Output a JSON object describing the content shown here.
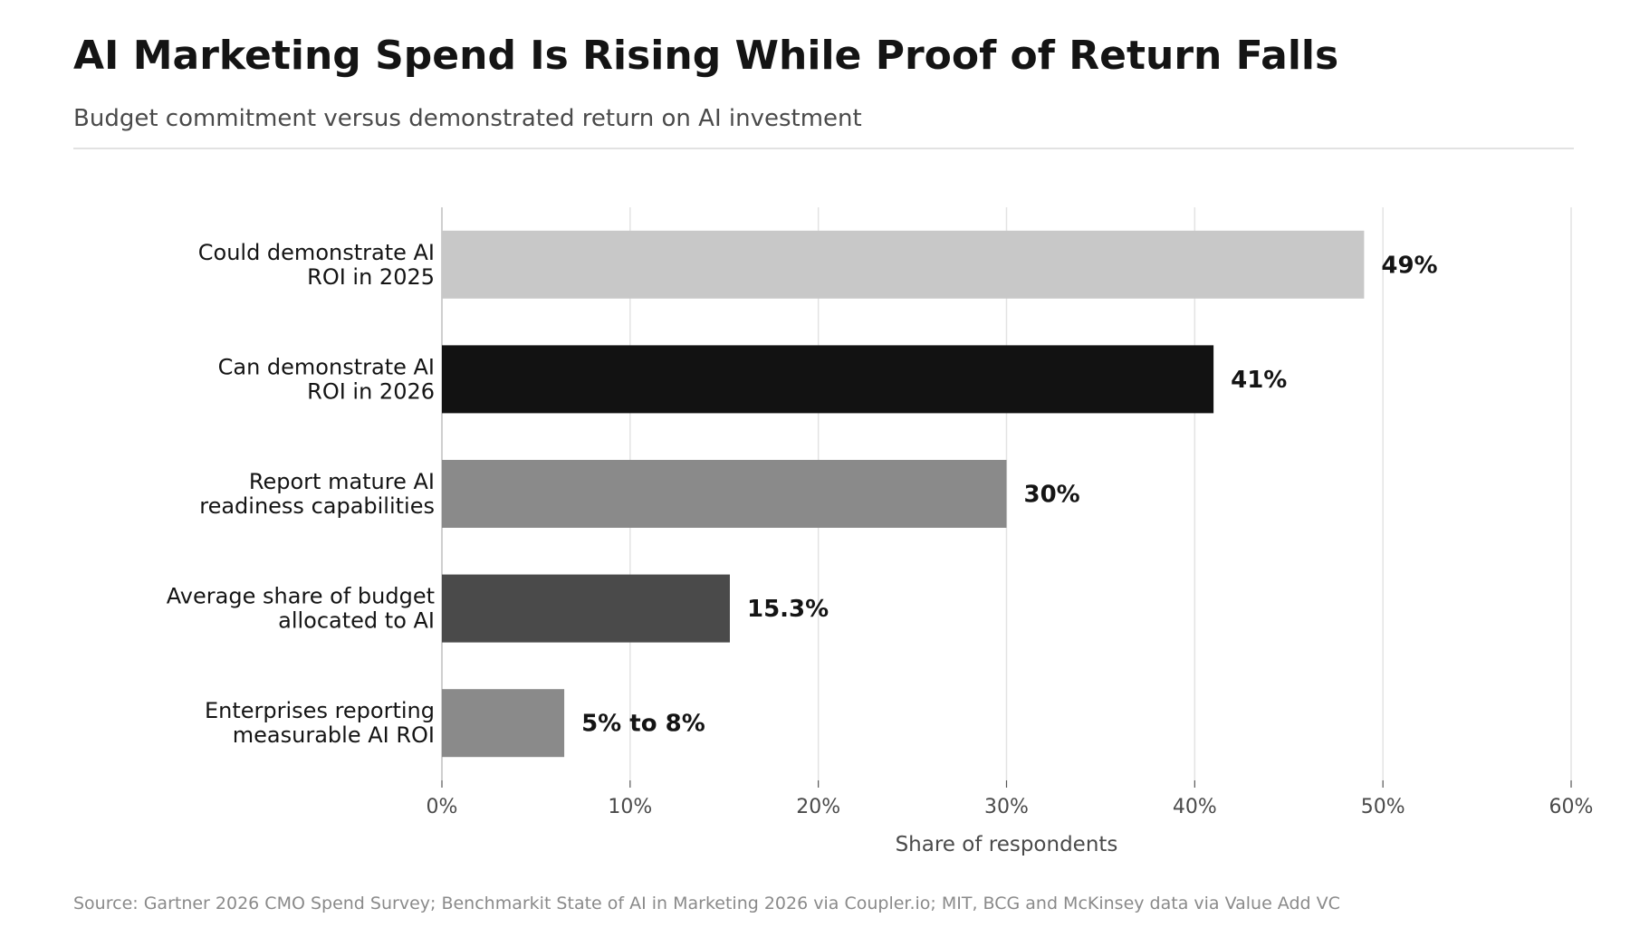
{
  "title": "AI Marketing Spend Is Rising While Proof of Return Falls",
  "subtitle": "Budget commitment versus demonstrated return on AI investment",
  "source": "Source: Gartner 2026 CMO Spend Survey; Benchmarkit State of AI in Marketing 2026 via Coupler.io; MIT, BCG and McKinsey data via Value Add VC",
  "chart_data": {
    "type": "bar",
    "orientation": "horizontal",
    "categories": [
      [
        "Could demonstrate AI",
        "ROI in 2025"
      ],
      [
        "Can demonstrate AI",
        "ROI in 2026"
      ],
      [
        "Report mature AI",
        "readiness capabilities"
      ],
      [
        "Average share of budget",
        "allocated to AI"
      ],
      [
        "Enterprises reporting",
        "measurable AI ROI"
      ]
    ],
    "values": [
      49,
      41,
      30,
      15.3,
      6.5
    ],
    "value_labels": [
      "49%",
      "41%",
      "30%",
      "15.3%",
      "5% to 8%"
    ],
    "colors": [
      "#c8c8c8",
      "#121212",
      "#8a8a8a",
      "#4a4a4a",
      "#8a8a8a"
    ],
    "xlabel": "Share of respondents",
    "ylabel": "",
    "xlim": [
      0,
      60
    ],
    "xticks": [
      0,
      10,
      20,
      30,
      40,
      50,
      60
    ],
    "xtick_labels": [
      "0%",
      "10%",
      "20%",
      "30%",
      "40%",
      "50%",
      "60%"
    ],
    "grid": "vertical",
    "legend": "none"
  }
}
